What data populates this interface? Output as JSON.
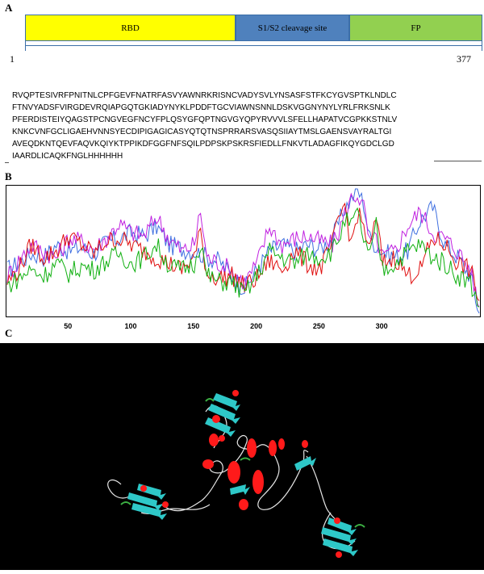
{
  "panels": {
    "a": {
      "letter": "A"
    },
    "b": {
      "letter": "B"
    },
    "c": {
      "letter": "C"
    }
  },
  "domain_map": {
    "segments": [
      {
        "label": "RBD",
        "color": "#ffff00"
      },
      {
        "label": "S1/S2  cleavage site",
        "color": "#4f81bd"
      },
      {
        "label": "FP",
        "color": "#92d050"
      }
    ],
    "start_label": "1",
    "end_label": "377",
    "border_color": "#3b6ea8"
  },
  "sequence": {
    "lines": [
      "RVQPTESIVRFPNITNLCPFGEVFNATRFASVYAWNRKRISNCVADYSVLYNSASFSTFKCYGVSPTKLNDLC",
      "FTNVYADSFVIRGDEVRQIAPGQTGKIADYNYKLPDDFTGCVIAWNSNNLDSKVGGNYNYLYRLFRKSNLK",
      "PFERDISTEIYQAGSTPCNGVEGFNCYFPLQSYGFQPTNGVGYQPYRVVVLSFELLHAPATVCGPKKSTNLV",
      "KNKCVNFGCLIGAEHVNNSYECDIPIGAGICASYQTQTNSPRRARSVASQSIIAYTMSLGAENSVAYRALTGI",
      "AVEQDKNTQEVFAQVKQIYKTPPIKDFGGFNFSQILPDPSKPSKRSFIEDLLFNKVTLADAGFIKQYGDCLGD",
      "IAARDLICAQKFNGLHHHHHH"
    ]
  },
  "chart_data": {
    "type": "line",
    "title": "",
    "xlabel": "",
    "ylabel": "",
    "xlim": [
      1,
      377
    ],
    "ylim": [
      0,
      1
    ],
    "xticks": [
      50,
      100,
      150,
      200,
      250,
      300
    ],
    "grid": false,
    "legend": "none",
    "series": [
      {
        "color": "#3f6fe0",
        "x": [
          1,
          10,
          20,
          30,
          40,
          50,
          60,
          70,
          80,
          90,
          100,
          110,
          120,
          130,
          140,
          150,
          155,
          160,
          170,
          180,
          190,
          200,
          210,
          220,
          230,
          240,
          250,
          260,
          265,
          270,
          275,
          280,
          285,
          290,
          295,
          300,
          310,
          320,
          330,
          340,
          350,
          360,
          370,
          377
        ],
        "y": [
          0.35,
          0.4,
          0.48,
          0.45,
          0.55,
          0.5,
          0.53,
          0.48,
          0.57,
          0.6,
          0.65,
          0.62,
          0.7,
          0.55,
          0.52,
          0.5,
          0.48,
          0.45,
          0.42,
          0.3,
          0.2,
          0.35,
          0.5,
          0.55,
          0.5,
          0.55,
          0.52,
          0.6,
          0.72,
          0.85,
          0.92,
          1.0,
          0.88,
          0.6,
          0.55,
          0.5,
          0.45,
          0.5,
          0.75,
          0.85,
          0.55,
          0.45,
          0.3,
          0.0
        ]
      },
      {
        "color": "#c020e0",
        "x": [
          1,
          10,
          20,
          30,
          40,
          50,
          60,
          70,
          80,
          90,
          100,
          110,
          120,
          130,
          140,
          150,
          155,
          160,
          170,
          180,
          190,
          200,
          210,
          220,
          230,
          240,
          250,
          260,
          265,
          270,
          275,
          280,
          285,
          290,
          295,
          300,
          310,
          320,
          330,
          340,
          350,
          360,
          370,
          377
        ],
        "y": [
          0.3,
          0.42,
          0.55,
          0.5,
          0.45,
          0.6,
          0.58,
          0.52,
          0.6,
          0.72,
          0.65,
          0.62,
          0.78,
          0.6,
          0.5,
          0.55,
          0.82,
          0.45,
          0.4,
          0.35,
          0.25,
          0.4,
          0.7,
          0.55,
          0.6,
          0.62,
          0.58,
          0.55,
          0.65,
          0.8,
          0.92,
          0.96,
          0.85,
          0.55,
          0.6,
          0.45,
          0.5,
          0.7,
          0.82,
          0.65,
          0.6,
          0.5,
          0.35,
          0.05
        ]
      },
      {
        "color": "#e01010",
        "x": [
          1,
          10,
          20,
          30,
          40,
          50,
          60,
          70,
          80,
          90,
          100,
          110,
          120,
          130,
          140,
          150,
          155,
          160,
          170,
          180,
          190,
          200,
          210,
          220,
          230,
          240,
          250,
          260,
          265,
          270,
          275,
          280,
          285,
          290,
          295,
          300,
          310,
          320,
          330,
          340,
          350,
          360,
          370,
          377
        ],
        "y": [
          0.25,
          0.35,
          0.55,
          0.45,
          0.5,
          0.62,
          0.55,
          0.48,
          0.58,
          0.6,
          0.55,
          0.5,
          0.45,
          0.4,
          0.35,
          0.45,
          0.65,
          0.32,
          0.28,
          0.3,
          0.22,
          0.28,
          0.42,
          0.35,
          0.5,
          0.4,
          0.35,
          0.55,
          0.75,
          0.88,
          0.55,
          0.8,
          0.7,
          0.5,
          0.78,
          0.4,
          0.45,
          0.3,
          0.35,
          0.6,
          0.55,
          0.4,
          0.35,
          0.1
        ]
      },
      {
        "color": "#10b010",
        "x": [
          1,
          10,
          20,
          30,
          40,
          50,
          60,
          70,
          80,
          90,
          100,
          110,
          120,
          130,
          140,
          150,
          155,
          160,
          170,
          180,
          190,
          200,
          210,
          220,
          230,
          240,
          250,
          260,
          265,
          270,
          275,
          280,
          285,
          290,
          295,
          300,
          310,
          320,
          330,
          340,
          350,
          360,
          370,
          377
        ],
        "y": [
          0.22,
          0.28,
          0.35,
          0.3,
          0.4,
          0.32,
          0.38,
          0.35,
          0.42,
          0.48,
          0.4,
          0.45,
          0.55,
          0.38,
          0.35,
          0.4,
          0.58,
          0.3,
          0.25,
          0.25,
          0.15,
          0.3,
          0.5,
          0.45,
          0.4,
          0.48,
          0.45,
          0.5,
          0.6,
          0.75,
          0.7,
          0.8,
          0.6,
          0.45,
          0.7,
          0.35,
          0.4,
          0.5,
          0.55,
          0.45,
          0.4,
          0.3,
          0.25,
          0.05
        ]
      }
    ]
  },
  "structure_view": {
    "background": "#000000",
    "colors": {
      "helix": "#ff1a1a",
      "sheet": "#2ec8c8",
      "coil": "#e6e6e6",
      "turn": "#3cb043"
    }
  }
}
